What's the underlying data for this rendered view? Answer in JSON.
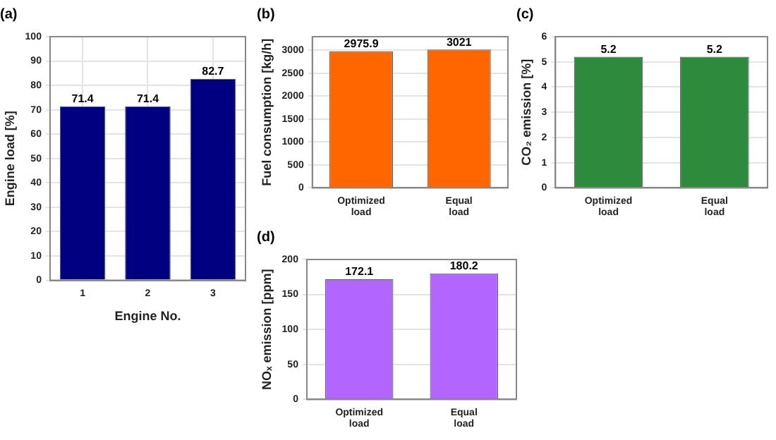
{
  "chart_data": [
    {
      "type": "bar",
      "title": "(a)",
      "xlabel": "Engine No.",
      "ylabel": "Engine load [%]",
      "categories": [
        "1",
        "2",
        "3"
      ],
      "values": [
        71.4,
        71.4,
        82.7
      ],
      "color": "#000080",
      "ylim": [
        0,
        100
      ],
      "yticks": [
        0,
        10,
        20,
        30,
        40,
        50,
        60,
        70,
        80,
        90,
        100
      ],
      "grid": true,
      "data_labels": true
    },
    {
      "type": "bar",
      "title": "(b)",
      "ylabel": "Fuel consumption [kg/h]",
      "categories": [
        "Optimized load",
        "Equal load"
      ],
      "values": [
        2975.9,
        3021
      ],
      "color": "#ff6600",
      "ylim": [
        0,
        3300
      ],
      "yticks": [
        0,
        500,
        1000,
        1500,
        2000,
        2500,
        3000
      ],
      "grid": "y",
      "data_labels": true
    },
    {
      "type": "bar",
      "title": "(c)",
      "ylabel": "CO₂ emission [%]",
      "categories": [
        "Optimized load",
        "Equal load"
      ],
      "values": [
        5.2,
        5.2
      ],
      "color": "#2e8b3e",
      "ylim": [
        0,
        6
      ],
      "yticks": [
        0,
        1,
        2,
        3,
        4,
        5,
        6
      ],
      "grid": "y",
      "data_labels": true
    },
    {
      "type": "bar",
      "title": "(d)",
      "ylabel": "NOₓ emission [ppm]",
      "categories": [
        "Optimized load",
        "Equal load"
      ],
      "values": [
        172.1,
        180.2
      ],
      "color": "#b266ff",
      "ylim": [
        0,
        200
      ],
      "yticks": [
        0,
        50,
        100,
        150,
        200
      ],
      "grid": "y",
      "data_labels": true
    }
  ]
}
